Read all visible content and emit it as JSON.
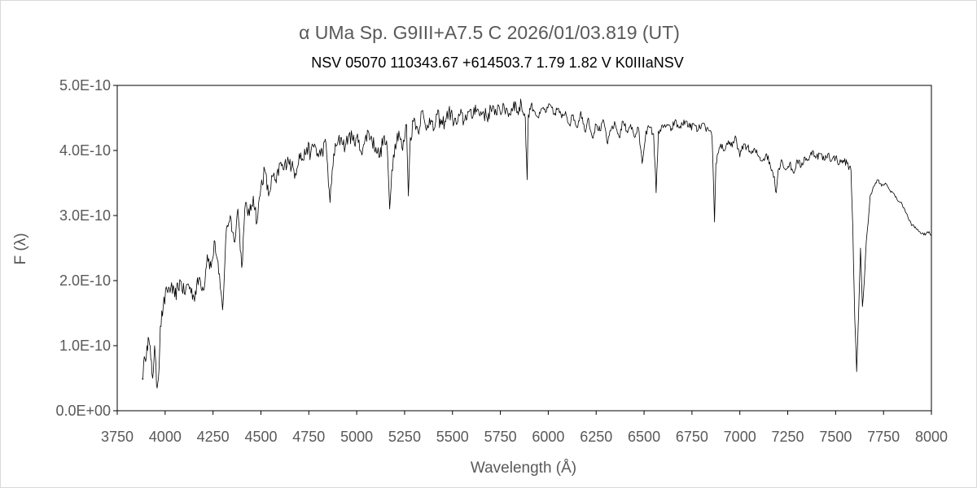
{
  "chart_data": {
    "type": "line",
    "title": "α UMa    Sp. G9III+A7.5 C    2026/01/03.819 (UT)",
    "subtitle": "NSV 05070    110343.67 +614503.7    1.79  1.82  V    K0IIIaNSV",
    "xlabel": "Wavelength (Å)",
    "ylabel": "F (λ)",
    "xlim": [
      3750,
      8000
    ],
    "ylim": [
      0,
      5e-10
    ],
    "x_ticks": [
      3750,
      4000,
      4250,
      4500,
      4750,
      5000,
      5250,
      5500,
      5750,
      6000,
      6250,
      6500,
      6750,
      7000,
      7250,
      7500,
      7750,
      8000
    ],
    "x_tick_labels": [
      "3750",
      "4000",
      "4250",
      "4500",
      "4750",
      "5000",
      "5250",
      "5500",
      "5750",
      "6000",
      "6250",
      "6500",
      "6750",
      "7000",
      "7250",
      "7500",
      "7750",
      "8000"
    ],
    "y_ticks": [
      0,
      1e-10,
      2e-10,
      3e-10,
      4e-10,
      5e-10
    ],
    "y_tick_labels": [
      "0.0E+00",
      "1.0E-10",
      "2.0E-10",
      "3.0E-10",
      "4.0E-10",
      "5.0E-10"
    ],
    "grid": false,
    "legend": "none",
    "line_color": "#000000",
    "series": [
      {
        "x": [
          3880,
          3895,
          3905,
          3915,
          3925,
          3935,
          3945,
          3955,
          3965,
          3975,
          3990,
          4010,
          4030,
          4050,
          4080,
          4100,
          4120,
          4150,
          4180,
          4200,
          4220,
          4240,
          4260,
          4280,
          4300,
          4320,
          4340,
          4360,
          4380,
          4400,
          4420,
          4440,
          4460,
          4480,
          4500,
          4520,
          4540,
          4560,
          4580,
          4600,
          4620,
          4640,
          4660,
          4680,
          4700,
          4720,
          4740,
          4760,
          4780,
          4800,
          4820,
          4840,
          4861,
          4880,
          4900,
          4920,
          4940,
          4960,
          4980,
          5000,
          5020,
          5040,
          5060,
          5080,
          5100,
          5120,
          5140,
          5160,
          5172,
          5183,
          5200,
          5220,
          5240,
          5260,
          5270,
          5280,
          5300,
          5320,
          5340,
          5360,
          5380,
          5400,
          5420,
          5440,
          5460,
          5480,
          5500,
          5520,
          5540,
          5560,
          5580,
          5600,
          5620,
          5640,
          5660,
          5680,
          5700,
          5720,
          5740,
          5760,
          5780,
          5800,
          5820,
          5840,
          5860,
          5880,
          5890,
          5896,
          5910,
          5930,
          5950,
          5970,
          5990,
          6010,
          6030,
          6050,
          6070,
          6090,
          6110,
          6130,
          6150,
          6170,
          6190,
          6210,
          6230,
          6250,
          6270,
          6290,
          6310,
          6330,
          6350,
          6370,
          6390,
          6410,
          6430,
          6450,
          6470,
          6490,
          6510,
          6530,
          6550,
          6563,
          6575,
          6600,
          6620,
          6640,
          6660,
          6680,
          6700,
          6720,
          6740,
          6760,
          6780,
          6800,
          6820,
          6840,
          6855,
          6868,
          6875,
          6885,
          6900,
          6920,
          6940,
          6960,
          6980,
          7000,
          7020,
          7040,
          7060,
          7080,
          7100,
          7120,
          7140,
          7160,
          7180,
          7190,
          7200,
          7220,
          7240,
          7260,
          7280,
          7300,
          7320,
          7340,
          7360,
          7380,
          7400,
          7420,
          7440,
          7460,
          7480,
          7500,
          7520,
          7540,
          7560,
          7580,
          7590,
          7600,
          7610,
          7620,
          7630,
          7640,
          7650,
          7660,
          7670,
          7680,
          7700,
          7720,
          7740,
          7760,
          7780,
          7800,
          7820,
          7840,
          7860,
          7880,
          7900,
          7920,
          7940,
          7960,
          7980,
          8000
        ],
        "y": [
          5e-11,
          8e-11,
          1e-10,
          1.1e-10,
          8e-11,
          5e-11,
          1e-10,
          4e-11,
          5e-11,
          1.3e-10,
          1.6e-10,
          1.85e-10,
          1.9e-10,
          1.75e-10,
          2e-10,
          1.8e-10,
          1.95e-10,
          1.75e-10,
          2.05e-10,
          1.85e-10,
          2.4e-10,
          2.2e-10,
          2.6e-10,
          2.1e-10,
          1.55e-10,
          2.8e-10,
          3e-10,
          2.6e-10,
          3.1e-10,
          2.2e-10,
          3.2e-10,
          3e-10,
          3.3e-10,
          2.9e-10,
          3.45e-10,
          3.7e-10,
          3.3e-10,
          3.6e-10,
          3.5e-10,
          3.8e-10,
          3.7e-10,
          3.9e-10,
          3.75e-10,
          3.65e-10,
          3.95e-10,
          3.85e-10,
          4.05e-10,
          3.95e-10,
          4.1e-10,
          3.9e-10,
          4e-10,
          4.1e-10,
          3.2e-10,
          3.95e-10,
          4.1e-10,
          4.2e-10,
          4.05e-10,
          4.25e-10,
          4.15e-10,
          4.2e-10,
          4e-10,
          4.1e-10,
          4.3e-10,
          4.15e-10,
          4.05e-10,
          3.9e-10,
          4.2e-10,
          4e-10,
          3.1e-10,
          3.7e-10,
          4.1e-10,
          4.3e-10,
          4e-10,
          4.4e-10,
          3.3e-10,
          4.2e-10,
          4.5e-10,
          4.3e-10,
          4.6e-10,
          4.35e-10,
          4.5e-10,
          4.3e-10,
          4.55e-10,
          4.4e-10,
          4.45e-10,
          4.6e-10,
          4.5e-10,
          4.4e-10,
          4.55e-10,
          4.45e-10,
          4.6e-10,
          4.5e-10,
          4.7e-10,
          4.55e-10,
          4.6e-10,
          4.5e-10,
          4.65e-10,
          4.55e-10,
          4.7e-10,
          4.6e-10,
          4.65e-10,
          4.55e-10,
          4.75e-10,
          4.6e-10,
          4.7e-10,
          4.5e-10,
          3.55e-10,
          4.55e-10,
          4.7e-10,
          4.6e-10,
          4.5e-10,
          4.65e-10,
          4.6e-10,
          4.7e-10,
          4.55e-10,
          4.65e-10,
          4.5e-10,
          4.6e-10,
          4.4e-10,
          4.55e-10,
          4.35e-10,
          4.6e-10,
          4.3e-10,
          4.5e-10,
          4.2e-10,
          4.4e-10,
          4.3e-10,
          4.45e-10,
          4.1e-10,
          4.35e-10,
          4.4e-10,
          4.2e-10,
          4.45e-10,
          4.3e-10,
          4.4e-10,
          4.2e-10,
          4.35e-10,
          3.8e-10,
          4.3e-10,
          4.35e-10,
          4.25e-10,
          3.35e-10,
          4.3e-10,
          4.35e-10,
          4.4e-10,
          4.3e-10,
          4.45e-10,
          4.35e-10,
          4.4e-10,
          4.45e-10,
          4.35e-10,
          4.4e-10,
          4.3e-10,
          4.4e-10,
          4.35e-10,
          4.3e-10,
          4.2e-10,
          2.9e-10,
          3.8e-10,
          3.95e-10,
          4.1e-10,
          4e-10,
          4.15e-10,
          4.05e-10,
          4.2e-10,
          3.9e-10,
          4.1e-10,
          4.05e-10,
          3.95e-10,
          4e-10,
          3.9e-10,
          3.85e-10,
          3.95e-10,
          3.75e-10,
          3.6e-10,
          3.35e-10,
          3.7e-10,
          3.85e-10,
          3.7e-10,
          3.8e-10,
          3.65e-10,
          3.85e-10,
          3.75e-10,
          3.9e-10,
          3.85e-10,
          4e-10,
          3.9e-10,
          3.95e-10,
          3.85e-10,
          3.95e-10,
          3.85e-10,
          3.9e-10,
          3.8e-10,
          3.85e-10,
          3.8e-10,
          3.7e-10,
          2.8e-10,
          1.4e-10,
          6e-11,
          1.5e-10,
          2.5e-10,
          1.6e-10,
          2e-10,
          2.6e-10,
          2.9e-10,
          3.3e-10,
          3.45e-10,
          3.55e-10,
          3.45e-10,
          3.5e-10,
          3.4e-10,
          3.35e-10,
          3.25e-10,
          3.2e-10,
          3.1e-10,
          2.95e-10,
          2.85e-10,
          2.8e-10,
          2.75e-10,
          2.7e-10,
          2.75e-10,
          2.7e-10
        ]
      }
    ]
  }
}
